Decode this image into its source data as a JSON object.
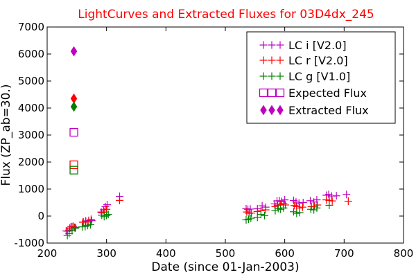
{
  "chart_data": {
    "type": "scatter",
    "title": "LightCurves and Extracted Fluxes for 03D4dx_245",
    "xlabel": "Date (since 01-Jan-2003)",
    "ylabel": "Flux (ZP_ab=30.)",
    "xlim": [
      200,
      800
    ],
    "ylim": [
      -1000,
      7000
    ],
    "xticks": [
      200,
      300,
      400,
      500,
      600,
      700,
      800
    ],
    "yticks": [
      -1000,
      0,
      1000,
      2000,
      3000,
      4000,
      5000,
      6000,
      7000
    ],
    "grid": false,
    "legend_position": "top-right",
    "colors": {
      "i": "#bf00bf",
      "r": "#ff0000",
      "g": "#008000",
      "title": "#ff0000"
    },
    "series": [
      {
        "name": "LC i [V2.0]",
        "marker": "plus",
        "color": "#bf00bf",
        "points": [
          [
            232,
            -550
          ],
          [
            237,
            -520
          ],
          [
            240,
            -400
          ],
          [
            244,
            -380
          ],
          [
            248,
            -420
          ],
          [
            261,
            -220
          ],
          [
            265,
            -180
          ],
          [
            270,
            -160
          ],
          [
            275,
            -170
          ],
          [
            291,
            150
          ],
          [
            295,
            230
          ],
          [
            298,
            350
          ],
          [
            301,
            420
          ],
          [
            322,
            730
          ],
          [
            535,
            270
          ],
          [
            538,
            250
          ],
          [
            542,
            260
          ],
          [
            554,
            270
          ],
          [
            562,
            380
          ],
          [
            568,
            330
          ],
          [
            583,
            450
          ],
          [
            587,
            560
          ],
          [
            591,
            570
          ],
          [
            595,
            540
          ],
          [
            600,
            600
          ],
          [
            615,
            580
          ],
          [
            619,
            520
          ],
          [
            624,
            480
          ],
          [
            631,
            500
          ],
          [
            643,
            570
          ],
          [
            649,
            520
          ],
          [
            654,
            600
          ],
          [
            670,
            770
          ],
          [
            674,
            800
          ],
          [
            679,
            740
          ],
          [
            687,
            750
          ],
          [
            704,
            800
          ]
        ]
      },
      {
        "name": "LC r [V2.0]",
        "marker": "plus",
        "color": "#ff0000",
        "points": [
          [
            234,
            -560
          ],
          [
            238,
            -450
          ],
          [
            242,
            -390
          ],
          [
            246,
            -420
          ],
          [
            260,
            -230
          ],
          [
            265,
            -200
          ],
          [
            270,
            -200
          ],
          [
            274,
            -120
          ],
          [
            292,
            120
          ],
          [
            296,
            150
          ],
          [
            300,
            250
          ],
          [
            322,
            580
          ],
          [
            536,
            150
          ],
          [
            540,
            100
          ],
          [
            544,
            110
          ],
          [
            554,
            170
          ],
          [
            560,
            200
          ],
          [
            568,
            230
          ],
          [
            584,
            350
          ],
          [
            588,
            400
          ],
          [
            593,
            430
          ],
          [
            598,
            460
          ],
          [
            601,
            410
          ],
          [
            616,
            390
          ],
          [
            620,
            350
          ],
          [
            625,
            300
          ],
          [
            630,
            330
          ],
          [
            645,
            350
          ],
          [
            650,
            360
          ],
          [
            655,
            410
          ],
          [
            670,
            600
          ],
          [
            675,
            580
          ],
          [
            680,
            560
          ],
          [
            707,
            550
          ]
        ]
      },
      {
        "name": "LC g [V1.0]",
        "marker": "plus",
        "color": "#008000",
        "points": [
          [
            234,
            -720
          ],
          [
            237,
            -650
          ],
          [
            242,
            -540
          ],
          [
            247,
            -450
          ],
          [
            259,
            -400
          ],
          [
            264,
            -390
          ],
          [
            268,
            -350
          ],
          [
            273,
            -320
          ],
          [
            292,
            30
          ],
          [
            296,
            -20
          ],
          [
            300,
            20
          ],
          [
            303,
            60
          ],
          [
            535,
            -140
          ],
          [
            539,
            -120
          ],
          [
            543,
            -80
          ],
          [
            554,
            -50
          ],
          [
            560,
            60
          ],
          [
            566,
            20
          ],
          [
            584,
            200
          ],
          [
            589,
            280
          ],
          [
            593,
            250
          ],
          [
            598,
            300
          ],
          [
            615,
            160
          ],
          [
            620,
            100
          ],
          [
            625,
            130
          ],
          [
            644,
            250
          ],
          [
            649,
            230
          ],
          [
            654,
            300
          ],
          [
            675,
            400
          ]
        ]
      },
      {
        "name": "Expected Flux",
        "marker": "square",
        "points": [
          {
            "x": 245,
            "y": 3100,
            "band": "i"
          },
          {
            "x": 245,
            "y": 1900,
            "band": "r"
          },
          {
            "x": 245,
            "y": 1700,
            "band": "g"
          }
        ]
      },
      {
        "name": "Extracted Flux",
        "marker": "diamond",
        "points": [
          {
            "x": 245,
            "y": 6100,
            "band": "i"
          },
          {
            "x": 245,
            "y": 4350,
            "band": "r"
          },
          {
            "x": 245,
            "y": 4050,
            "band": "g"
          }
        ]
      }
    ]
  }
}
